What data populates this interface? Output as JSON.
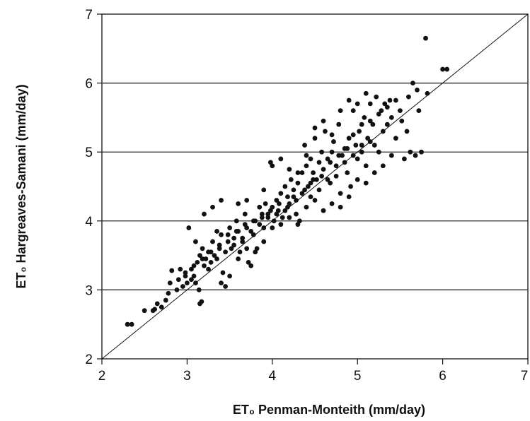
{
  "chart_data": {
    "type": "scatter",
    "title": "",
    "xlabel": "ET₀ Penman-Monteith (mm/day)",
    "ylabel": "ET₀ Hargreaves-Samani (mm/day)",
    "xlim": [
      2,
      7
    ],
    "ylim": [
      2,
      7
    ],
    "xticks": [
      "2",
      "3",
      "4",
      "5",
      "6",
      "7"
    ],
    "yticks": [
      "2",
      "3",
      "4",
      "5",
      "6",
      "7"
    ],
    "grid": "horizontal",
    "reference_line": "1:1",
    "points": [
      [
        2.3,
        2.5
      ],
      [
        2.35,
        2.5
      ],
      [
        2.5,
        2.7
      ],
      [
        2.6,
        2.7
      ],
      [
        2.62,
        2.72
      ],
      [
        2.65,
        2.8
      ],
      [
        2.7,
        2.75
      ],
      [
        2.75,
        2.85
      ],
      [
        2.78,
        2.95
      ],
      [
        2.8,
        3.1
      ],
      [
        2.82,
        3.28
      ],
      [
        2.88,
        3.0
      ],
      [
        2.9,
        3.15
      ],
      [
        2.95,
        3.05
      ],
      [
        2.98,
        3.2
      ],
      [
        3.0,
        3.1
      ],
      [
        3.02,
        3.9
      ],
      [
        3.05,
        3.3
      ],
      [
        3.08,
        3.2
      ],
      [
        3.1,
        3.1
      ],
      [
        3.12,
        3.4
      ],
      [
        3.14,
        3.0
      ],
      [
        3.15,
        3.5
      ],
      [
        3.15,
        2.8
      ],
      [
        3.17,
        2.83
      ],
      [
        3.18,
        3.6
      ],
      [
        3.2,
        3.35
      ],
      [
        3.22,
        3.45
      ],
      [
        3.25,
        3.55
      ],
      [
        3.28,
        3.4
      ],
      [
        3.3,
        3.7
      ],
      [
        3.32,
        3.5
      ],
      [
        3.35,
        3.85
      ],
      [
        3.38,
        3.6
      ],
      [
        3.4,
        3.8
      ],
      [
        3.4,
        3.1
      ],
      [
        3.42,
        3.25
      ],
      [
        3.45,
        3.05
      ],
      [
        3.48,
        3.8
      ],
      [
        3.5,
        3.9
      ],
      [
        3.52,
        3.6
      ],
      [
        3.55,
        3.75
      ],
      [
        3.58,
        4.0
      ],
      [
        3.6,
        3.85
      ],
      [
        3.62,
        3.55
      ],
      [
        3.65,
        3.7
      ],
      [
        3.68,
        4.1
      ],
      [
        3.7,
        3.9
      ],
      [
        3.72,
        3.4
      ],
      [
        3.75,
        3.35
      ],
      [
        3.78,
        3.8
      ],
      [
        3.8,
        4.0
      ],
      [
        3.82,
        3.6
      ],
      [
        3.85,
        4.2
      ],
      [
        3.88,
        4.1
      ],
      [
        3.9,
        3.9
      ],
      [
        3.92,
        4.25
      ],
      [
        3.95,
        4.1
      ],
      [
        3.98,
        4.85
      ],
      [
        4.0,
        4.2
      ],
      [
        4.02,
        4.0
      ],
      [
        4.05,
        4.3
      ],
      [
        4.07,
        4.15
      ],
      [
        4.1,
        4.4
      ],
      [
        4.12,
        4.05
      ],
      [
        4.15,
        4.5
      ],
      [
        4.18,
        4.35
      ],
      [
        4.2,
        4.25
      ],
      [
        4.22,
        4.6
      ],
      [
        4.25,
        4.45
      ],
      [
        4.28,
        4.1
      ],
      [
        4.3,
        4.55
      ],
      [
        4.32,
        4.0
      ],
      [
        4.35,
        4.7
      ],
      [
        4.38,
        5.1
      ],
      [
        4.4,
        4.8
      ],
      [
        4.42,
        4.5
      ],
      [
        4.45,
        4.9
      ],
      [
        4.48,
        4.7
      ],
      [
        4.5,
        5.2
      ],
      [
        4.52,
        4.6
      ],
      [
        4.55,
        4.85
      ],
      [
        4.58,
        5.0
      ],
      [
        4.6,
        4.75
      ],
      [
        4.62,
        5.3
      ],
      [
        4.65,
        4.9
      ],
      [
        4.68,
        4.55
      ],
      [
        4.7,
        5.0
      ],
      [
        4.72,
        5.15
      ],
      [
        4.75,
        4.8
      ],
      [
        4.78,
        5.4
      ],
      [
        4.8,
        4.4
      ],
      [
        4.82,
        4.95
      ],
      [
        4.85,
        5.05
      ],
      [
        4.88,
        4.7
      ],
      [
        4.9,
        5.2
      ],
      [
        4.92,
        4.5
      ],
      [
        4.95,
        5.6
      ],
      [
        4.98,
        5.1
      ],
      [
        5.0,
        4.9
      ],
      [
        5.02,
        5.3
      ],
      [
        5.05,
        5.0
      ],
      [
        5.08,
        5.5
      ],
      [
        5.1,
        4.8
      ],
      [
        5.12,
        5.2
      ],
      [
        5.15,
        5.7
      ],
      [
        5.18,
        5.4
      ],
      [
        5.2,
        5.1
      ],
      [
        5.22,
        5.8
      ],
      [
        5.25,
        5.0
      ],
      [
        5.28,
        5.6
      ],
      [
        5.3,
        5.3
      ],
      [
        5.32,
        5.7
      ],
      [
        5.35,
        5.4
      ],
      [
        5.38,
        5.75
      ],
      [
        5.4,
        5.5
      ],
      [
        5.45,
        5.2
      ],
      [
        5.5,
        5.6
      ],
      [
        5.55,
        4.9
      ],
      [
        5.58,
        5.3
      ],
      [
        5.6,
        5.8
      ],
      [
        5.62,
        5.0
      ],
      [
        5.65,
        6.0
      ],
      [
        5.68,
        4.95
      ],
      [
        5.7,
        5.9
      ],
      [
        5.72,
        5.6
      ],
      [
        5.75,
        5.0
      ],
      [
        5.8,
        6.65
      ],
      [
        5.82,
        5.85
      ],
      [
        6.0,
        6.2
      ],
      [
        6.05,
        6.2
      ],
      [
        3.1,
        3.7
      ],
      [
        3.2,
        4.1
      ],
      [
        3.3,
        4.2
      ],
      [
        3.4,
        4.3
      ],
      [
        3.6,
        4.25
      ],
      [
        3.7,
        4.3
      ],
      [
        3.9,
        4.45
      ],
      [
        4.0,
        4.8
      ],
      [
        4.1,
        4.9
      ],
      [
        4.2,
        4.75
      ],
      [
        4.3,
        4.7
      ],
      [
        4.4,
        4.95
      ],
      [
        4.5,
        5.35
      ],
      [
        4.6,
        5.45
      ],
      [
        4.7,
        5.25
      ],
      [
        4.8,
        5.6
      ],
      [
        4.9,
        5.75
      ],
      [
        5.0,
        5.7
      ],
      [
        5.1,
        5.85
      ],
      [
        3.5,
        3.2
      ],
      [
        3.6,
        3.45
      ],
      [
        3.7,
        3.6
      ],
      [
        3.8,
        3.55
      ],
      [
        3.9,
        3.7
      ],
      [
        4.0,
        3.9
      ],
      [
        4.1,
        3.95
      ],
      [
        4.2,
        4.05
      ],
      [
        4.3,
        3.95
      ],
      [
        4.4,
        4.2
      ],
      [
        4.5,
        4.3
      ],
      [
        4.6,
        4.15
      ],
      [
        4.7,
        4.25
      ],
      [
        4.8,
        4.2
      ],
      [
        4.9,
        4.35
      ],
      [
        5.0,
        4.6
      ],
      [
        5.1,
        4.55
      ],
      [
        5.2,
        4.7
      ],
      [
        5.3,
        4.8
      ],
      [
        5.4,
        4.95
      ],
      [
        4.85,
        4.85
      ],
      [
        4.95,
        4.95
      ],
      [
        5.05,
        5.1
      ],
      [
        5.15,
        5.15
      ],
      [
        4.75,
        4.65
      ],
      [
        4.65,
        4.6
      ],
      [
        4.55,
        4.45
      ],
      [
        4.45,
        4.35
      ],
      [
        4.15,
        4.15
      ],
      [
        4.05,
        4.1
      ],
      [
        3.95,
        4.05
      ],
      [
        3.85,
        3.95
      ],
      [
        3.75,
        3.85
      ],
      [
        3.65,
        3.75
      ],
      [
        3.55,
        3.65
      ],
      [
        3.45,
        3.55
      ],
      [
        3.35,
        3.45
      ],
      [
        3.25,
        3.3
      ],
      [
        2.92,
        3.3
      ],
      [
        3.05,
        3.15
      ],
      [
        5.25,
        5.55
      ],
      [
        5.35,
        5.65
      ],
      [
        5.45,
        5.75
      ],
      [
        5.52,
        5.45
      ],
      [
        4.25,
        4.35
      ],
      [
        4.35,
        4.4
      ],
      [
        4.45,
        4.55
      ],
      [
        4.95,
        5.25
      ],
      [
        5.05,
        5.4
      ],
      [
        5.15,
        5.45
      ],
      [
        4.88,
        5.05
      ],
      [
        4.78,
        4.95
      ],
      [
        4.68,
        4.85
      ],
      [
        4.58,
        4.65
      ],
      [
        4.48,
        4.6
      ],
      [
        4.38,
        4.45
      ],
      [
        4.28,
        4.3
      ],
      [
        4.18,
        4.2
      ],
      [
        4.08,
        4.25
      ],
      [
        3.98,
        4.15
      ],
      [
        3.88,
        4.05
      ],
      [
        3.78,
        4.0
      ],
      [
        3.68,
        3.95
      ],
      [
        3.58,
        3.85
      ],
      [
        3.48,
        3.7
      ],
      [
        3.38,
        3.65
      ],
      [
        3.28,
        3.55
      ],
      [
        3.18,
        3.45
      ],
      [
        3.08,
        3.35
      ],
      [
        2.98,
        3.25
      ]
    ]
  }
}
